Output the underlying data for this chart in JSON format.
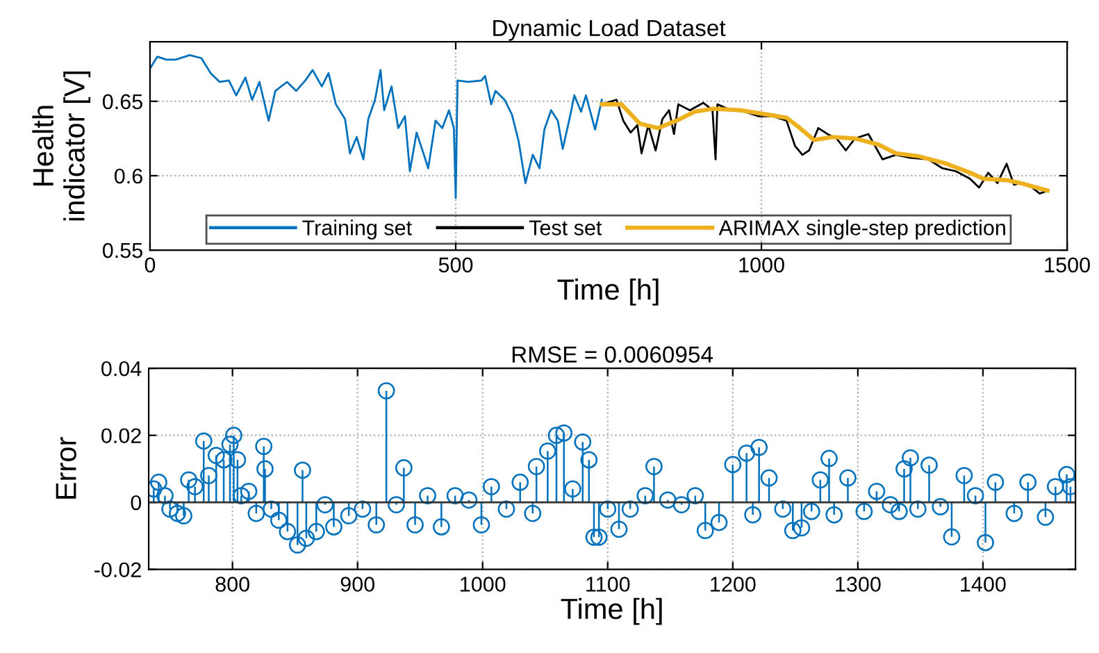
{
  "chart_data": [
    {
      "type": "line",
      "title": "Dynamic Load Dataset",
      "xlabel": "Time [h]",
      "ylabel": "Health indicator [V]",
      "xlim": [
        0,
        1500
      ],
      "xticks": [
        0,
        500,
        1000,
        1500
      ],
      "ylim": [
        0.55,
        0.69
      ],
      "yticks": [
        0.55,
        0.6,
        0.65
      ],
      "grid": true,
      "legend": "bottom",
      "line_style": "solid",
      "series": [
        {
          "name": "Training set",
          "color": "#0072bd",
          "x": [
            0,
            12,
            27,
            42,
            65,
            84,
            99,
            114,
            129,
            141,
            156,
            167,
            179,
            194,
            205,
            224,
            239,
            254,
            266,
            281,
            292,
            304,
            319,
            327,
            338,
            349,
            357,
            368,
            377,
            383,
            395,
            406,
            417,
            425,
            436,
            448,
            455,
            467,
            478,
            489,
            497,
            500,
            503,
            520,
            542,
            548,
            558,
            565,
            580,
            592,
            603,
            614,
            626,
            637,
            645,
            656,
            667,
            675,
            686,
            694,
            705,
            713,
            728,
            739
          ],
          "values": [
            0.672,
            0.68,
            0.678,
            0.678,
            0.681,
            0.679,
            0.669,
            0.663,
            0.664,
            0.654,
            0.666,
            0.651,
            0.663,
            0.637,
            0.657,
            0.663,
            0.657,
            0.664,
            0.671,
            0.66,
            0.669,
            0.648,
            0.638,
            0.615,
            0.626,
            0.611,
            0.638,
            0.651,
            0.671,
            0.644,
            0.66,
            0.632,
            0.64,
            0.603,
            0.629,
            0.614,
            0.605,
            0.637,
            0.632,
            0.644,
            0.632,
            0.585,
            0.664,
            0.663,
            0.664,
            0.667,
            0.648,
            0.657,
            0.651,
            0.641,
            0.623,
            0.595,
            0.614,
            0.605,
            0.631,
            0.644,
            0.637,
            0.618,
            0.638,
            0.654,
            0.643,
            0.654,
            0.631,
            0.651
          ]
        },
        {
          "name": "Test set",
          "color": "#000000",
          "x": [
            739,
            763,
            774,
            786,
            797,
            804,
            815,
            827,
            838,
            849,
            857,
            864,
            883,
            905,
            920,
            925,
            928,
            950,
            973,
            995,
            1018,
            1041,
            1055,
            1067,
            1078,
            1093,
            1108,
            1123,
            1138,
            1153,
            1175,
            1198,
            1220,
            1243,
            1273,
            1296,
            1318,
            1341,
            1356,
            1371,
            1386,
            1401,
            1413,
            1424,
            1440,
            1455,
            1468
          ],
          "values": [
            0.648,
            0.651,
            0.637,
            0.629,
            0.634,
            0.615,
            0.634,
            0.617,
            0.638,
            0.644,
            0.628,
            0.648,
            0.644,
            0.649,
            0.644,
            0.611,
            0.648,
            0.644,
            0.643,
            0.64,
            0.64,
            0.637,
            0.62,
            0.614,
            0.617,
            0.632,
            0.628,
            0.625,
            0.617,
            0.625,
            0.628,
            0.611,
            0.614,
            0.612,
            0.611,
            0.605,
            0.603,
            0.598,
            0.592,
            0.602,
            0.595,
            0.608,
            0.594,
            0.595,
            0.593,
            0.588,
            0.59
          ]
        },
        {
          "name": "ARIMAX single-step prediction",
          "color": "#edb120",
          "x": [
            739,
            771,
            801,
            831,
            861,
            891,
            921,
            966,
            1011,
            1041,
            1063,
            1086,
            1116,
            1153,
            1191,
            1220,
            1258,
            1303,
            1341,
            1363,
            1401,
            1424,
            1450,
            1468
          ],
          "values": [
            0.648,
            0.648,
            0.635,
            0.632,
            0.637,
            0.643,
            0.645,
            0.644,
            0.641,
            0.639,
            0.632,
            0.624,
            0.626,
            0.625,
            0.621,
            0.615,
            0.613,
            0.608,
            0.602,
            0.598,
            0.597,
            0.595,
            0.592,
            0.59
          ]
        }
      ]
    },
    {
      "type": "lollipop",
      "title": "RMSE = 0.0060954",
      "xlabel": "Time [h]",
      "ylabel": "Error",
      "xlim": [
        733,
        1474
      ],
      "xticks": [
        800,
        900,
        1000,
        1100,
        1200,
        1300,
        1400
      ],
      "ylim": [
        -0.02,
        0.04
      ],
      "yticks": [
        {
          "value": -0.02,
          "label": "-0.02"
        },
        0,
        0.02,
        0.04
      ],
      "grid": true,
      "marker": "circle",
      "series": [
        {
          "color": "#0072bd",
          "x": [
            737,
            741,
            746,
            750,
            756,
            761,
            765,
            770,
            777,
            781,
            787,
            793,
            798,
            801,
            804,
            807,
            813,
            819,
            825,
            826,
            831,
            837,
            844,
            852,
            856,
            859,
            867,
            874,
            881,
            893,
            904,
            915,
            923,
            931,
            937,
            946,
            956,
            967,
            978,
            989,
            999,
            1007,
            1019,
            1030,
            1040,
            1043,
            1052,
            1059,
            1065,
            1072,
            1080,
            1085,
            1089,
            1093,
            1100,
            1109,
            1118,
            1130,
            1137,
            1148,
            1159,
            1170,
            1178,
            1189,
            1200,
            1211,
            1216,
            1221,
            1229,
            1240,
            1248,
            1255,
            1263,
            1270,
            1277,
            1281,
            1292,
            1305,
            1315,
            1326,
            1333,
            1337,
            1342,
            1348,
            1357,
            1366,
            1375,
            1385,
            1394,
            1402,
            1410,
            1425,
            1436,
            1450,
            1458,
            1467,
            1470
          ],
          "values": [
            0.004,
            0.006,
            0.002,
            -0.002,
            -0.0033,
            -0.004,
            0.0067,
            0.0047,
            0.0183,
            0.008,
            0.014,
            0.0127,
            0.0173,
            0.02,
            0.0127,
            0.002,
            0.0033,
            -0.0033,
            0.0167,
            0.01,
            -0.002,
            -0.0053,
            -0.0087,
            -0.0127,
            0.0096,
            -0.0107,
            -0.0087,
            -0.0007,
            -0.0073,
            -0.004,
            -0.002,
            -0.0067,
            0.0333,
            -0.0007,
            0.0103,
            -0.0067,
            0.002,
            -0.0073,
            0.002,
            0.0007,
            -0.0067,
            0.0047,
            -0.002,
            0.006,
            -0.0033,
            0.0107,
            0.0153,
            0.02,
            0.0207,
            0.004,
            0.018,
            0.0127,
            -0.0104,
            -0.0104,
            -0.002,
            -0.008,
            -0.002,
            0.002,
            0.0107,
            0.0007,
            -0.0007,
            0.002,
            -0.0084,
            -0.006,
            0.0113,
            0.0147,
            -0.0037,
            0.0164,
            0.0073,
            -0.002,
            -0.0084,
            -0.0076,
            -0.0027,
            0.0067,
            0.0131,
            -0.0037,
            0.0073,
            -0.0027,
            0.0033,
            -0.0007,
            -0.0027,
            0.01,
            0.0133,
            -0.002,
            0.0111,
            -0.0013,
            -0.0103,
            0.008,
            0.002,
            -0.012,
            0.006,
            -0.0033,
            0.006,
            -0.0044,
            0.0047,
            0.0083,
            0.0047
          ]
        }
      ]
    }
  ]
}
